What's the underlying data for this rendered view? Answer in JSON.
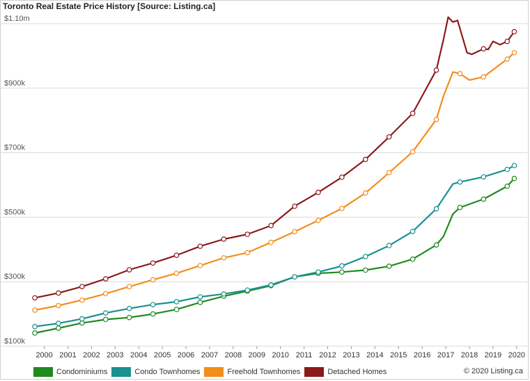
{
  "chart_data": {
    "type": "line",
    "title": "Toronto Real Estate Price History [Source: Listing.ca]",
    "copyright": "© 2020 Listing.ca",
    "y_ticks": [
      {
        "value": 100000,
        "label": "$100k"
      },
      {
        "value": 300000,
        "label": "$300k"
      },
      {
        "value": 500000,
        "label": "$500k"
      },
      {
        "value": 700000,
        "label": "$700k"
      },
      {
        "value": 900000,
        "label": "$900k"
      },
      {
        "value": 1100000,
        "label": "$1.10m"
      }
    ],
    "x_ticks": [
      "2000",
      "2001",
      "2002",
      "2003",
      "2004",
      "2005",
      "2006",
      "2007",
      "2008",
      "2009",
      "2010",
      "2011",
      "2012",
      "2013",
      "2014",
      "2015",
      "2016",
      "2017",
      "2018",
      "2019",
      "2020"
    ],
    "ylim": [
      100000,
      1100000
    ],
    "xlim": [
      1999.6,
      2020.3
    ],
    "grid": true,
    "legend_position": "bottom-left",
    "series": [
      {
        "name": "Condominiums",
        "color": "#1f8a1f",
        "points": [
          [
            1999.6,
            141000
          ],
          [
            2000.6,
            156000
          ],
          [
            2001.6,
            172000
          ],
          [
            2002.6,
            183000
          ],
          [
            2003.6,
            189000
          ],
          [
            2004.6,
            200000
          ],
          [
            2005.6,
            214000
          ],
          [
            2006.6,
            236000
          ],
          [
            2007.6,
            255000
          ],
          [
            2008.6,
            271000
          ],
          [
            2009.6,
            288000
          ],
          [
            2010.6,
            315000
          ],
          [
            2011.6,
            326000
          ],
          [
            2012.6,
            330000
          ],
          [
            2013.6,
            336000
          ],
          [
            2014.6,
            348000
          ],
          [
            2015.6,
            370000
          ],
          [
            2016.6,
            414000
          ],
          [
            2016.9,
            440000
          ],
          [
            2017.3,
            510000
          ],
          [
            2017.6,
            530000
          ],
          [
            2018.6,
            556000
          ],
          [
            2019.6,
            596000
          ],
          [
            2019.9,
            620000
          ]
        ]
      },
      {
        "name": "Condo Townhomes",
        "color": "#1a9090",
        "points": [
          [
            1999.6,
            161000
          ],
          [
            2000.6,
            171000
          ],
          [
            2001.6,
            185000
          ],
          [
            2002.6,
            203000
          ],
          [
            2003.6,
            217000
          ],
          [
            2004.6,
            229000
          ],
          [
            2005.6,
            238000
          ],
          [
            2006.6,
            253000
          ],
          [
            2007.6,
            262000
          ],
          [
            2008.6,
            274000
          ],
          [
            2009.6,
            290000
          ],
          [
            2010.6,
            315000
          ],
          [
            2011.6,
            330000
          ],
          [
            2012.6,
            349000
          ],
          [
            2013.6,
            378000
          ],
          [
            2014.6,
            412000
          ],
          [
            2015.6,
            456000
          ],
          [
            2016.6,
            526000
          ],
          [
            2017.3,
            603000
          ],
          [
            2017.6,
            609000
          ],
          [
            2018.6,
            625000
          ],
          [
            2019.6,
            648000
          ],
          [
            2019.9,
            660000
          ]
        ]
      },
      {
        "name": "Freehold Townhomes",
        "color": "#f28e1c",
        "points": [
          [
            1999.6,
            212000
          ],
          [
            2000.6,
            226000
          ],
          [
            2001.6,
            243000
          ],
          [
            2002.6,
            263000
          ],
          [
            2003.6,
            285000
          ],
          [
            2004.6,
            306000
          ],
          [
            2005.6,
            326000
          ],
          [
            2006.6,
            350000
          ],
          [
            2007.6,
            374000
          ],
          [
            2008.6,
            390000
          ],
          [
            2009.6,
            422000
          ],
          [
            2010.6,
            455000
          ],
          [
            2011.6,
            490000
          ],
          [
            2012.6,
            527000
          ],
          [
            2013.6,
            575000
          ],
          [
            2014.6,
            638000
          ],
          [
            2015.6,
            703000
          ],
          [
            2016.6,
            803000
          ],
          [
            2016.9,
            875000
          ],
          [
            2017.3,
            950000
          ],
          [
            2017.6,
            945000
          ],
          [
            2018.0,
            925000
          ],
          [
            2018.6,
            935000
          ],
          [
            2019.6,
            990000
          ],
          [
            2019.9,
            1010000
          ]
        ]
      },
      {
        "name": "Detached Homes",
        "color": "#8b1a1a",
        "points": [
          [
            1999.6,
            250000
          ],
          [
            2000.6,
            265000
          ],
          [
            2001.6,
            285000
          ],
          [
            2002.6,
            309000
          ],
          [
            2003.6,
            337000
          ],
          [
            2004.6,
            358000
          ],
          [
            2005.6,
            382000
          ],
          [
            2006.6,
            410000
          ],
          [
            2007.6,
            432000
          ],
          [
            2008.6,
            447000
          ],
          [
            2009.6,
            474000
          ],
          [
            2010.6,
            534000
          ],
          [
            2011.6,
            577000
          ],
          [
            2012.6,
            624000
          ],
          [
            2013.6,
            679000
          ],
          [
            2014.6,
            749000
          ],
          [
            2015.6,
            822000
          ],
          [
            2016.6,
            956000
          ],
          [
            2016.9,
            1050000
          ],
          [
            2017.1,
            1120000
          ],
          [
            2017.3,
            1105000
          ],
          [
            2017.5,
            1110000
          ],
          [
            2017.7,
            1060000
          ],
          [
            2017.9,
            1010000
          ],
          [
            2018.1,
            1005000
          ],
          [
            2018.6,
            1022000
          ],
          [
            2018.8,
            1020000
          ],
          [
            2019.0,
            1045000
          ],
          [
            2019.3,
            1035000
          ],
          [
            2019.6,
            1045000
          ],
          [
            2019.9,
            1075000
          ]
        ]
      }
    ]
  }
}
